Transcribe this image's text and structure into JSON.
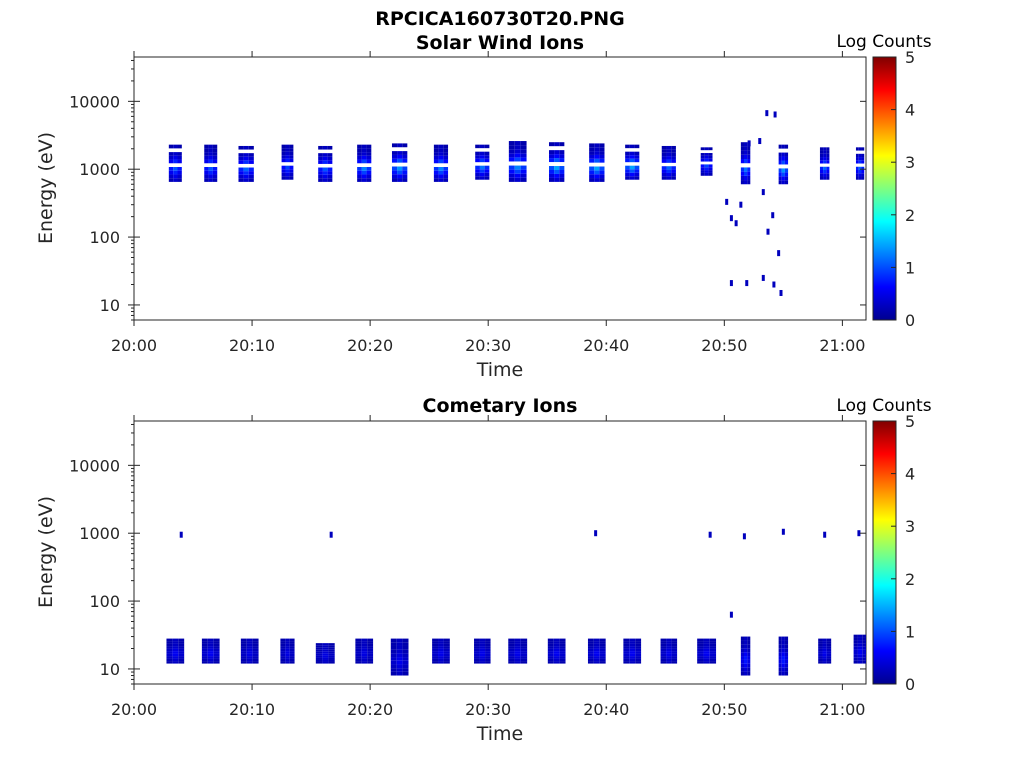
{
  "figure": {
    "title": "RPCICA160730T20.PNG"
  },
  "colors": {
    "axis": "#262626",
    "colormap": "jet"
  },
  "chart_data": [
    {
      "type": "heatmap",
      "title": "Solar Wind Ions",
      "xlabel": "Time",
      "ylabel": "Energy (eV)",
      "xticks": [
        "20:00",
        "20:10",
        "20:20",
        "20:30",
        "20:40",
        "20:50",
        "21:00"
      ],
      "xlim": [
        "20:00",
        "21:02"
      ],
      "yscale": "log",
      "yticks": [
        "10",
        "100",
        "1000",
        "10000"
      ],
      "ylim": [
        6,
        45000
      ],
      "colorbar": {
        "label": "Log Counts",
        "ticks": [
          "0",
          "1",
          "2",
          "3",
          "4",
          "5"
        ],
        "range": [
          0,
          5
        ]
      },
      "bursts": [
        {
          "t": "20:03.5",
          "dur_min": 1.1,
          "e_min": 650,
          "e_max": 2300,
          "peak": 0.9
        },
        {
          "t": "20:06.5",
          "dur_min": 1.1,
          "e_min": 650,
          "e_max": 2300,
          "peak": 0.9
        },
        {
          "t": "20:09.5",
          "dur_min": 1.3,
          "e_min": 650,
          "e_max": 2200,
          "peak": 1.0
        },
        {
          "t": "20:13.0",
          "dur_min": 1.0,
          "e_min": 700,
          "e_max": 2300,
          "peak": 0.8
        },
        {
          "t": "20:16.2",
          "dur_min": 1.2,
          "e_min": 650,
          "e_max": 2200,
          "peak": 0.9
        },
        {
          "t": "20:19.5",
          "dur_min": 1.2,
          "e_min": 650,
          "e_max": 2300,
          "peak": 1.2
        },
        {
          "t": "20:22.5",
          "dur_min": 1.3,
          "e_min": 650,
          "e_max": 2400,
          "peak": 1.3
        },
        {
          "t": "20:26.0",
          "dur_min": 1.2,
          "e_min": 650,
          "e_max": 2300,
          "peak": 1.2
        },
        {
          "t": "20:29.5",
          "dur_min": 1.2,
          "e_min": 700,
          "e_max": 2300,
          "peak": 1.1
        },
        {
          "t": "20:32.5",
          "dur_min": 1.5,
          "e_min": 650,
          "e_max": 2600,
          "peak": 1.2
        },
        {
          "t": "20:35.8",
          "dur_min": 1.3,
          "e_min": 650,
          "e_max": 2500,
          "peak": 1.4
        },
        {
          "t": "20:39.2",
          "dur_min": 1.3,
          "e_min": 650,
          "e_max": 2400,
          "peak": 1.4
        },
        {
          "t": "20:42.2",
          "dur_min": 1.2,
          "e_min": 700,
          "e_max": 2300,
          "peak": 1.4
        },
        {
          "t": "20:45.3",
          "dur_min": 1.2,
          "e_min": 700,
          "e_max": 2200,
          "peak": 1.0
        },
        {
          "t": "20:48.5",
          "dur_min": 1.0,
          "e_min": 800,
          "e_max": 2100,
          "peak": 0.8
        },
        {
          "t": "20:51.8",
          "dur_min": 0.8,
          "e_min": 600,
          "e_max": 2500,
          "peak": 1.1
        },
        {
          "t": "20:55.0",
          "dur_min": 0.8,
          "e_min": 600,
          "e_max": 2300,
          "peak": 1.3
        },
        {
          "t": "20:58.5",
          "dur_min": 0.8,
          "e_min": 700,
          "e_max": 2100,
          "peak": 1.0
        },
        {
          "t": "21:01.5",
          "dur_min": 0.7,
          "e_min": 700,
          "e_max": 2100,
          "peak": 1.0
        }
      ],
      "sparse_points": [
        [
          "20:50.2",
          330
        ],
        [
          "20:50.6",
          190
        ],
        [
          "20:51.0",
          160
        ],
        [
          "20:51.4",
          300
        ],
        [
          "20:53.3",
          460
        ],
        [
          "20:53.7",
          120
        ],
        [
          "20:54.1",
          210
        ],
        [
          "20:54.6",
          58
        ],
        [
          "20:53.6",
          6700
        ],
        [
          "20:54.3",
          6400
        ],
        [
          "20:53.0",
          2600
        ],
        [
          "20:52.1",
          2400
        ],
        [
          "20:50.6",
          21
        ],
        [
          "20:51.9",
          21
        ],
        [
          "20:53.3",
          25
        ],
        [
          "20:54.2",
          20
        ],
        [
          "20:54.8",
          15
        ]
      ]
    },
    {
      "type": "heatmap",
      "title": "Cometary Ions",
      "xlabel": "Time",
      "ylabel": "Energy (eV)",
      "xticks": [
        "20:00",
        "20:10",
        "20:20",
        "20:30",
        "20:40",
        "20:50",
        "21:00"
      ],
      "xlim": [
        "20:00",
        "21:02"
      ],
      "yscale": "log",
      "yticks": [
        "10",
        "100",
        "1000",
        "10000"
      ],
      "ylim": [
        6,
        45000
      ],
      "colorbar": {
        "label": "Log Counts",
        "ticks": [
          "0",
          "1",
          "2",
          "3",
          "4",
          "5"
        ],
        "range": [
          0,
          5
        ]
      },
      "bursts": [
        {
          "t": "20:03.5",
          "dur_min": 1.5,
          "e_min": 12,
          "e_max": 28,
          "peak": 0.3
        },
        {
          "t": "20:06.5",
          "dur_min": 1.5,
          "e_min": 12,
          "e_max": 28,
          "peak": 0.3
        },
        {
          "t": "20:09.8",
          "dur_min": 1.5,
          "e_min": 12,
          "e_max": 28,
          "peak": 0.2
        },
        {
          "t": "20:13.0",
          "dur_min": 1.2,
          "e_min": 12,
          "e_max": 28,
          "peak": 0.2
        },
        {
          "t": "20:16.2",
          "dur_min": 1.6,
          "e_min": 12,
          "e_max": 24,
          "peak": 0.2
        },
        {
          "t": "20:19.5",
          "dur_min": 1.5,
          "e_min": 12,
          "e_max": 28,
          "peak": 0.2
        },
        {
          "t": "20:22.5",
          "dur_min": 1.5,
          "e_min": 8,
          "e_max": 28,
          "peak": 0.25
        },
        {
          "t": "20:26.0",
          "dur_min": 1.5,
          "e_min": 12,
          "e_max": 28,
          "peak": 0.25
        },
        {
          "t": "20:29.5",
          "dur_min": 1.4,
          "e_min": 12,
          "e_max": 28,
          "peak": 0.25
        },
        {
          "t": "20:32.5",
          "dur_min": 1.6,
          "e_min": 12,
          "e_max": 28,
          "peak": 0.25
        },
        {
          "t": "20:35.8",
          "dur_min": 1.5,
          "e_min": 12,
          "e_max": 28,
          "peak": 0.3
        },
        {
          "t": "20:39.2",
          "dur_min": 1.5,
          "e_min": 12,
          "e_max": 28,
          "peak": 0.3
        },
        {
          "t": "20:42.2",
          "dur_min": 1.5,
          "e_min": 12,
          "e_max": 28,
          "peak": 0.3
        },
        {
          "t": "20:45.3",
          "dur_min": 1.4,
          "e_min": 12,
          "e_max": 28,
          "peak": 0.25
        },
        {
          "t": "20:48.5",
          "dur_min": 1.6,
          "e_min": 12,
          "e_max": 28,
          "peak": 0.3
        },
        {
          "t": "20:51.8",
          "dur_min": 0.8,
          "e_min": 8,
          "e_max": 30,
          "peak": 0.5
        },
        {
          "t": "20:55.0",
          "dur_min": 0.8,
          "e_min": 8,
          "e_max": 30,
          "peak": 0.5
        },
        {
          "t": "20:58.5",
          "dur_min": 1.1,
          "e_min": 12,
          "e_max": 28,
          "peak": 0.25
        },
        {
          "t": "21:01.5",
          "dur_min": 1.1,
          "e_min": 12,
          "e_max": 32,
          "peak": 0.3
        }
      ],
      "sparse_points": [
        [
          "20:04.0",
          950
        ],
        [
          "20:16.7",
          950
        ],
        [
          "20:39.1",
          1000
        ],
        [
          "20:48.8",
          950
        ],
        [
          "20:51.7",
          900
        ],
        [
          "20:55.0",
          1050
        ],
        [
          "20:58.5",
          950
        ],
        [
          "21:01.4",
          1000
        ],
        [
          "20:50.6",
          63
        ]
      ]
    }
  ]
}
